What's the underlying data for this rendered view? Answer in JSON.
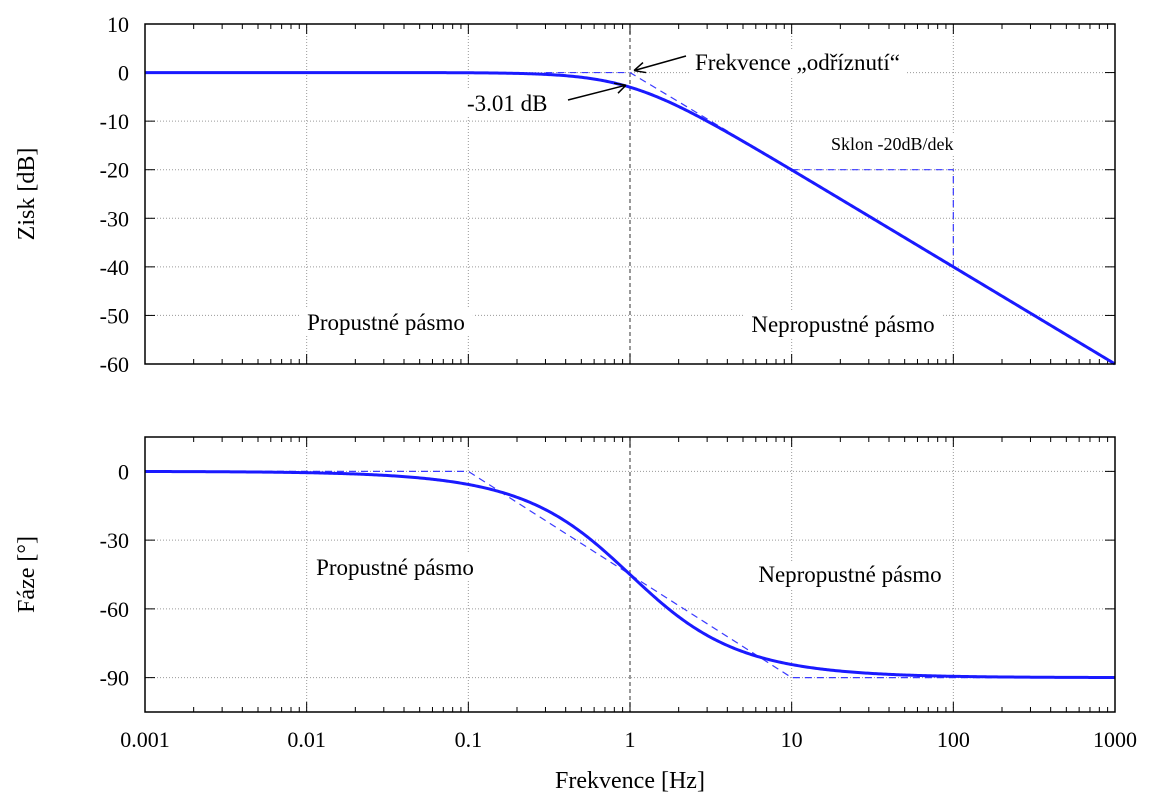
{
  "chart_data": [
    {
      "type": "line",
      "id": "gain",
      "ylabel": "Zisk [dB]",
      "xscale": "log",
      "xlim": [
        0.001,
        1000
      ],
      "ylim": [
        -60,
        10
      ],
      "yticks": [
        "10",
        "0",
        "-10",
        "-20",
        "-30",
        "-40",
        "-50",
        "-60"
      ],
      "ytick_values": [
        10,
        0,
        -10,
        -20,
        -30,
        -40,
        -50,
        -60
      ],
      "grid": true,
      "series": [
        {
          "kind": "exact",
          "color": "#1a1aff",
          "formula": "-10*log10(1+f^2)",
          "x": [
            0.001,
            0.01,
            0.1,
            0.3,
            1,
            3,
            10,
            100,
            1000
          ],
          "y": [
            0,
            0,
            -0.04,
            -0.37,
            -3.01,
            -10,
            -20.04,
            -40,
            -60
          ]
        },
        {
          "kind": "asymptote",
          "color": "#3a3aff",
          "x": [
            0.3,
            1,
            1000
          ],
          "y": [
            0,
            0,
            -60
          ]
        }
      ],
      "slope_marker": {
        "x": [
          10,
          100,
          100
        ],
        "y": [
          -20,
          -20,
          -40
        ]
      },
      "annotations": {
        "cutoff": "Frekvence „odříznutí“",
        "minus3db": "-3.01 dB",
        "slope": "Sklon -20dB/dek",
        "passband": "Propustné pásmo",
        "stopband": "Nepropustné pásmo"
      }
    },
    {
      "type": "line",
      "id": "phase",
      "ylabel": "Fáze [°]",
      "xlabel": "Frekvence [Hz]",
      "xscale": "log",
      "xlim": [
        0.001,
        1000
      ],
      "ylim": [
        -105,
        15
      ],
      "yticks": [
        "0",
        "-30",
        "-60",
        "-90"
      ],
      "ytick_values": [
        0,
        -30,
        -60,
        -90
      ],
      "xticks": [
        "0.001",
        "0.01",
        "0.1",
        "1",
        "10",
        "100",
        "1000"
      ],
      "xtick_values": [
        0.001,
        0.01,
        0.1,
        1,
        10,
        100,
        1000
      ],
      "grid": true,
      "series": [
        {
          "kind": "exact",
          "color": "#1a1aff",
          "formula": "-atan(f) in degrees",
          "x": [
            0.001,
            0.01,
            0.1,
            1,
            10,
            100,
            1000
          ],
          "y": [
            -0.06,
            -0.57,
            -5.7,
            -45,
            -84.3,
            -89.4,
            -89.9
          ]
        },
        {
          "kind": "asymptote",
          "color": "#3a3aff",
          "x": [
            0.1,
            10
          ],
          "y": [
            0,
            -90
          ]
        }
      ],
      "annotations": {
        "passband": "Propustné pásmo",
        "stopband": "Nepropustné pásmo"
      }
    }
  ]
}
